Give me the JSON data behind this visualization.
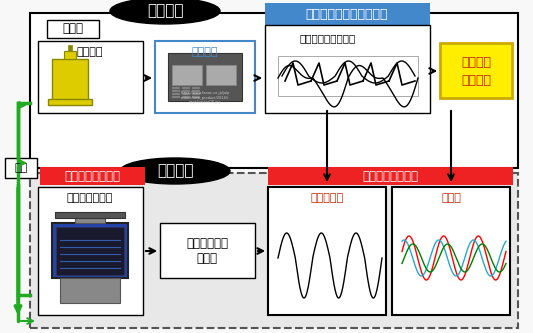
{
  "bg_color": "#f0f0f0",
  "title": "",
  "real_space_label": "現実空間",
  "virtual_space_label": "仮想空間",
  "sync_label": "同期",
  "jikako_label": "実加工",
  "kosakukikai_label": "工作機械",
  "seigyo_label": "制御装置",
  "sensorless_label": "センサレスモニタリング",
  "spindle_label": "主軸モータートルク",
  "defect_label1": "欠損検知",
  "defect_label2": "摩耗把握",
  "simulation_label": "シミュレーション",
  "computer_label": "コンピューター",
  "realtime_label": "リアルタイム\nで予測",
  "virtual_monitor_label": "仮想モニタリング",
  "cutting_torque_label": "切削トルク",
  "cutting_force_label": "切削力",
  "real_box_color": "#ffffff",
  "virtual_box_color": "#d0d0d0",
  "sensorless_bg": "#4488cc",
  "simulation_bg": "#ee2222",
  "virtual_monitor_bg": "#ee2222",
  "defect_bg": "#ffee00",
  "jikako_bg": "#ffffff",
  "arrow_color": "#000000",
  "sync_arrow_color": "#22aa22",
  "green_arrow_color": "#22aa22",
  "machine_color": "#ddcc00",
  "computer_dark": "#333333",
  "computer_screen": "#4488cc"
}
